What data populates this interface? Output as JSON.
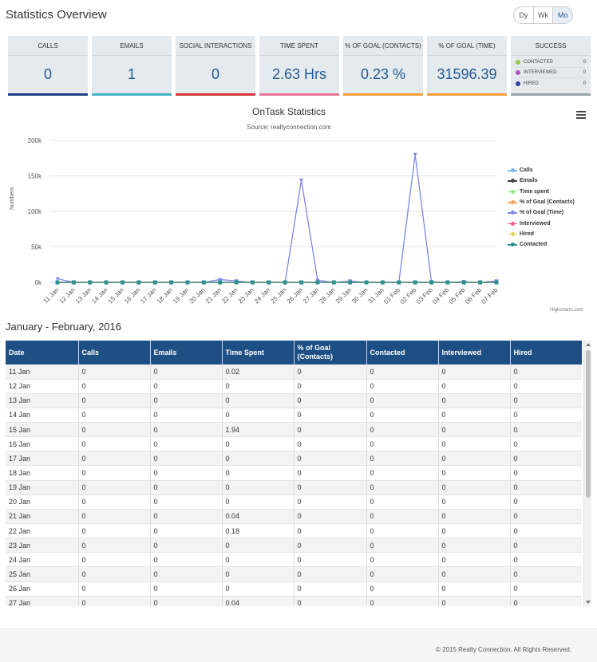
{
  "page": {
    "title": "Statistics Overview",
    "range_buttons": [
      "Dy",
      "Wk",
      "Mo"
    ],
    "active_range": "Mo"
  },
  "stats": [
    {
      "label": "CALLS",
      "value": "0",
      "color": "#1f3f88"
    },
    {
      "label": "EMAILS",
      "value": "1",
      "color": "#41b3c9"
    },
    {
      "label": "SOCIAL INTERACTIONS",
      "value": "0",
      "color": "#d9353b"
    },
    {
      "label": "TIME SPENT",
      "value": "2.63 Hrs",
      "color": "#e8749a"
    },
    {
      "label": "% OF GOAL (CONTACTS)",
      "value": "0.23 %",
      "color": "#f2a03f"
    },
    {
      "label": "% OF GOAL (TIME)",
      "value": "31596.39",
      "color": "#f2a03f"
    }
  ],
  "success": {
    "label": "SUCCESS",
    "color": "#9aa5ae",
    "items": [
      {
        "name": "CONTACTED",
        "count": "0",
        "color": "#9bc53d"
      },
      {
        "name": "INTERVIEWED",
        "count": "0",
        "color": "#b44cc4"
      },
      {
        "name": "HIRED",
        "count": "0",
        "color": "#2c3fa8"
      }
    ]
  },
  "chart_data": {
    "type": "line",
    "title": "OnTask Statistics",
    "subtitle": "Source: realtyconnection.com",
    "ylabel": "Numbers",
    "xlabel": "",
    "ylim": [
      0,
      200000
    ],
    "yticks": [
      "0k",
      "50k",
      "100k",
      "150k",
      "200k"
    ],
    "categories": [
      "11 Jan",
      "12 Jan",
      "13 Jan",
      "14 Jan",
      "15 Jan",
      "16 Jan",
      "17 Jan",
      "18 Jan",
      "19 Jan",
      "20 Jan",
      "21 Jan",
      "22 Jan",
      "23 Jan",
      "24 Jan",
      "25 Jan",
      "26 Jan",
      "27 Jan",
      "28 Jan",
      "29 Jan",
      "30 Jan",
      "31 Jan",
      "01 Feb",
      "02 Feb",
      "03 Feb",
      "04 Feb",
      "05 Feb",
      "06 Feb",
      "07 Feb"
    ],
    "series": [
      {
        "name": "Calls",
        "color": "#7cb5ec",
        "values": [
          0,
          0,
          0,
          0,
          0,
          0,
          0,
          0,
          0,
          0,
          0,
          0,
          0,
          0,
          0,
          0,
          0,
          0,
          0,
          0,
          0,
          0,
          0,
          0,
          0,
          0,
          0,
          0
        ]
      },
      {
        "name": "Emails",
        "color": "#434348",
        "values": [
          0,
          0,
          0,
          0,
          0,
          0,
          0,
          0,
          0,
          0,
          0,
          0,
          0,
          0,
          0,
          0,
          0,
          0,
          0,
          0,
          0,
          0,
          0,
          0,
          0,
          0,
          0,
          0
        ]
      },
      {
        "name": "Time spent",
        "color": "#90ed7d",
        "values": [
          0.02,
          0,
          0,
          0,
          1.94,
          0,
          0,
          0,
          0,
          0,
          0.04,
          0.18,
          0,
          0,
          0,
          0,
          0.04,
          0,
          0,
          0,
          0,
          0,
          0,
          0,
          0,
          0,
          0,
          0
        ]
      },
      {
        "name": "% of Goal (Contacts)",
        "color": "#f7a35c",
        "values": [
          0,
          0,
          0,
          0,
          0,
          0,
          0,
          0,
          0,
          0,
          0,
          0,
          0,
          0,
          0,
          0,
          0,
          0,
          0,
          0,
          0,
          0,
          0,
          0,
          0,
          0,
          0,
          0
        ]
      },
      {
        "name": "% of Goal (Time)",
        "color": "#8085e9",
        "values": [
          5000,
          0,
          0,
          0,
          0,
          0,
          0,
          0,
          0,
          0,
          4000,
          2000,
          0,
          0,
          0,
          144000,
          3000,
          0,
          2000,
          0,
          0,
          0,
          180000,
          1000,
          0,
          1000,
          0,
          2000
        ]
      },
      {
        "name": "Interviewed",
        "color": "#f15c80",
        "values": [
          0,
          0,
          0,
          0,
          0,
          0,
          0,
          0,
          0,
          0,
          0,
          0,
          0,
          0,
          0,
          0,
          0,
          0,
          0,
          0,
          0,
          0,
          0,
          0,
          0,
          0,
          0,
          0
        ]
      },
      {
        "name": "Hired",
        "color": "#e4d354",
        "values": [
          0,
          0,
          0,
          0,
          0,
          0,
          0,
          0,
          0,
          0,
          0,
          0,
          0,
          0,
          0,
          0,
          0,
          0,
          0,
          0,
          0,
          0,
          0,
          0,
          0,
          0,
          0,
          0
        ]
      },
      {
        "name": "Contacted",
        "color": "#2b908f",
        "values": [
          0,
          0,
          0,
          0,
          0,
          0,
          0,
          0,
          0,
          0,
          0,
          0,
          0,
          0,
          0,
          0,
          0,
          0,
          0,
          0,
          0,
          0,
          0,
          0,
          0,
          0,
          0,
          0
        ]
      }
    ],
    "legend_position": "right",
    "credits": "Highcharts.com"
  },
  "table": {
    "period_title": "January - February, 2016",
    "headers": [
      "Date",
      "Calls",
      "Emails",
      "Time Spent",
      "% of Goal (Contacts)",
      "Contacted",
      "Interviewed",
      "Hired"
    ],
    "rows": [
      [
        "11 Jan",
        "0",
        "0",
        "0.02",
        "0",
        "0",
        "0",
        "0"
      ],
      [
        "12 Jan",
        "0",
        "0",
        "0",
        "0",
        "0",
        "0",
        "0"
      ],
      [
        "13 Jan",
        "0",
        "0",
        "0",
        "0",
        "0",
        "0",
        "0"
      ],
      [
        "14 Jan",
        "0",
        "0",
        "0",
        "0",
        "0",
        "0",
        "0"
      ],
      [
        "15 Jan",
        "0",
        "0",
        "1.94",
        "0",
        "0",
        "0",
        "0"
      ],
      [
        "16 Jan",
        "0",
        "0",
        "0",
        "0",
        "0",
        "0",
        "0"
      ],
      [
        "17 Jan",
        "0",
        "0",
        "0",
        "0",
        "0",
        "0",
        "0"
      ],
      [
        "18 Jan",
        "0",
        "0",
        "0",
        "0",
        "0",
        "0",
        "0"
      ],
      [
        "19 Jan",
        "0",
        "0",
        "0",
        "0",
        "0",
        "0",
        "0"
      ],
      [
        "20 Jan",
        "0",
        "0",
        "0",
        "0",
        "0",
        "0",
        "0"
      ],
      [
        "21 Jan",
        "0",
        "0",
        "0.04",
        "0",
        "0",
        "0",
        "0"
      ],
      [
        "22 Jan",
        "0",
        "0",
        "0.18",
        "0",
        "0",
        "0",
        "0"
      ],
      [
        "23 Jan",
        "0",
        "0",
        "0",
        "0",
        "0",
        "0",
        "0"
      ],
      [
        "24 Jan",
        "0",
        "0",
        "0",
        "0",
        "0",
        "0",
        "0"
      ],
      [
        "25 Jan",
        "0",
        "0",
        "0",
        "0",
        "0",
        "0",
        "0"
      ],
      [
        "26 Jan",
        "0",
        "0",
        "0",
        "0",
        "0",
        "0",
        "0"
      ],
      [
        "27 Jan",
        "0",
        "0",
        "0.04",
        "0",
        "0",
        "0",
        "0"
      ]
    ]
  },
  "footer": {
    "text": "© 2015 Realty Connection. All Rights Reserved."
  }
}
